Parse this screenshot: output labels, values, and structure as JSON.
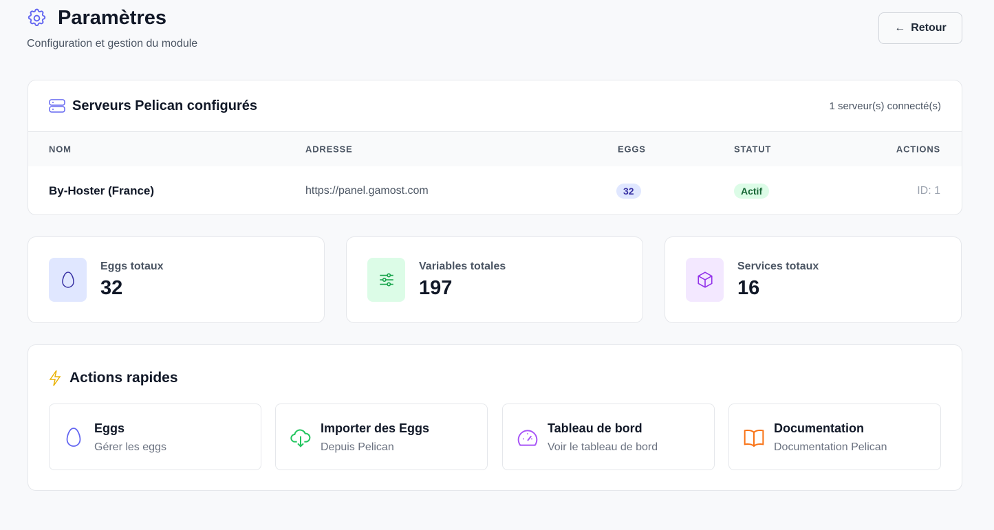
{
  "header": {
    "title": "Paramètres",
    "subtitle": "Configuration et gestion du module",
    "back_label": "Retour"
  },
  "servers": {
    "title": "Serveurs Pelican configurés",
    "count_text": "1 serveur(s) connecté(s)",
    "columns": [
      "NOM",
      "ADRESSE",
      "EGGS",
      "STATUT",
      "ACTIONS"
    ],
    "rows": [
      {
        "name": "By-Hoster (France)",
        "address": "https://panel.gamost.com",
        "eggs": "32",
        "status": "Actif",
        "actions": "ID: 1"
      }
    ]
  },
  "stats": [
    {
      "label": "Eggs totaux",
      "value": "32",
      "icon": "egg-icon",
      "color": "#3730a3",
      "bg": "#e0e7ff"
    },
    {
      "label": "Variables totales",
      "value": "197",
      "icon": "sliders-icon",
      "color": "#16a34a",
      "bg": "#dcfce7"
    },
    {
      "label": "Services totaux",
      "value": "16",
      "icon": "cube-icon",
      "color": "#9333ea",
      "bg": "#f3e8ff"
    }
  ],
  "quick_actions": {
    "title": "Actions rapides",
    "items": [
      {
        "title": "Eggs",
        "subtitle": "Gérer les eggs",
        "icon": "egg-icon",
        "color": "#6366f1"
      },
      {
        "title": "Importer des Eggs",
        "subtitle": "Depuis Pelican",
        "icon": "cloud-download-icon",
        "color": "#22c55e"
      },
      {
        "title": "Tableau de bord",
        "subtitle": "Voir le tableau de bord",
        "icon": "gauge-icon",
        "color": "#a855f7"
      },
      {
        "title": "Documentation",
        "subtitle": "Documentation Pelican",
        "icon": "book-icon",
        "color": "#f97316"
      }
    ]
  }
}
